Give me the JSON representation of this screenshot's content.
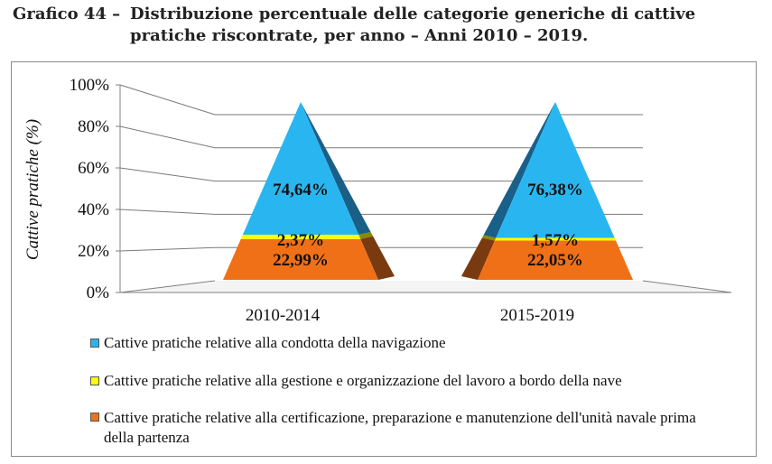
{
  "title": {
    "number": "Grafico 44 –",
    "line1": "Distribuzione percentuale delle categorie generiche di cattive",
    "line2": "pratiche riscontrate, per anno – Anni 2010 – 2019."
  },
  "chart_data": {
    "type": "stacked-pyramid",
    "ylabel": "Cattive pratiche (%)",
    "xlabel": "",
    "ylim": [
      0,
      100
    ],
    "y_ticks": [
      "0%",
      "20%",
      "40%",
      "60%",
      "80%",
      "100%"
    ],
    "grid": true,
    "legend_placement": "bottom",
    "categories": [
      "2010-2014",
      "2015-2019"
    ],
    "series": [
      {
        "name": "Cattive pratiche relative alla condotta della navigazione",
        "color": "#29B6F0",
        "values": [
          74.64,
          76.38
        ],
        "labels": [
          "74,64%",
          "76,38%"
        ]
      },
      {
        "name": "Cattive pratiche relative alla gestione e organizzazione del lavoro a bordo della nave",
        "color": "#FFFF00",
        "values": [
          2.37,
          1.57
        ],
        "labels": [
          "2,37%",
          "1,57%"
        ]
      },
      {
        "name": "Cattive pratiche relative alla certificazione, preparazione e manutenzione dell'unità navale prima della partenza",
        "color": "#F07018",
        "values": [
          22.99,
          22.05
        ],
        "labels": [
          "22,99%",
          "22,05%"
        ]
      }
    ]
  },
  "legend": {
    "l1": "Cattive pratiche relative alla condotta della navigazione",
    "l2": "Cattive pratiche relative alla gestione e organizzazione del lavoro a bordo della nave",
    "l3": "Cattive pratiche relative alla certificazione, preparazione e manutenzione dell'unità navale prima della partenza"
  }
}
